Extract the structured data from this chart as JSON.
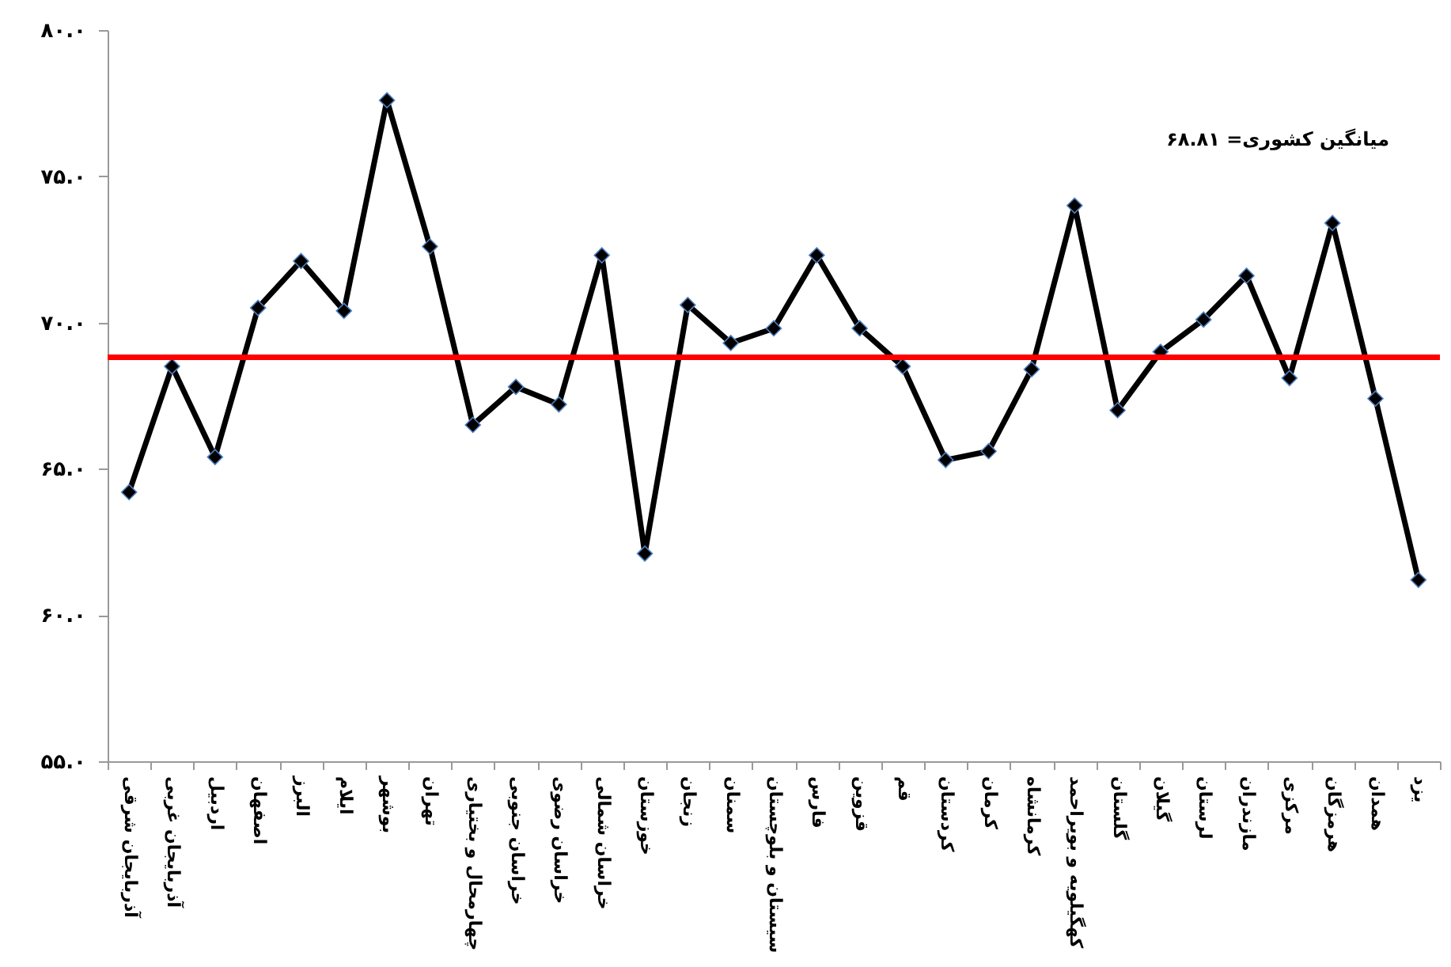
{
  "chart_data": {
    "type": "line",
    "categories": [
      "آذربایجان شرقی",
      "آذربایجان غربی",
      "اردبیل",
      "اصفهان",
      "البرز",
      "ایلام",
      "بوشهر",
      "تهران",
      "چهارمحال و بختیاری",
      "خراسان جنوبی",
      "خراسان رضوی",
      "خراسان شمالی",
      "خوزستان",
      "زنجان",
      "سمنان",
      "سیستان و بلوچستان",
      "فارس",
      "قزوین",
      "قم",
      "کردستان",
      "کرمان",
      "کرمانشاه",
      "کهگیلویه و بویراحمد",
      "گلستان",
      "گیلان",
      "لرستان",
      "مازندران",
      "مرکزی",
      "هرمزگان",
      "همدان",
      "یزد"
    ],
    "series": [
      {
        "color": "#000000",
        "values": [
          64.2,
          68.5,
          65.4,
          70.5,
          72.1,
          70.4,
          77.6,
          72.6,
          66.5,
          67.8,
          67.2,
          72.3,
          62.1,
          70.6,
          69.3,
          69.8,
          72.3,
          69.8,
          68.5,
          65.3,
          65.6,
          68.4,
          74.0,
          67.0,
          69.0,
          70.1,
          71.6,
          68.1,
          73.4,
          67.4,
          61.2
        ]
      }
    ],
    "ylim": [
      55,
      80
    ],
    "yticks": [
      {
        "value": 55,
        "label": "۵۵.۰"
      },
      {
        "value": 60,
        "label": "۶۰.۰"
      },
      {
        "value": 65,
        "label": "۶۵.۰"
      },
      {
        "value": 70,
        "label": "۷۰.۰"
      },
      {
        "value": 75,
        "label": "۷۵.۰"
      },
      {
        "value": 80,
        "label": "۸۰.۰"
      }
    ],
    "ref_lines": [
      {
        "axis": "y",
        "value": 68.81,
        "color": "#ff0000"
      }
    ],
    "annotations": [
      "میانگین کشوری= ۶۸.۸۱"
    ],
    "marker": "diamond",
    "line_style": "solid",
    "grid": false
  }
}
